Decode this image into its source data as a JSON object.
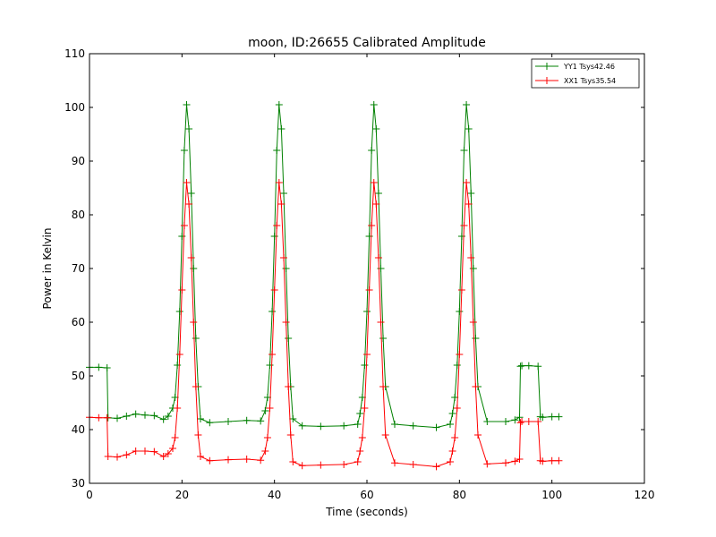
{
  "chart_data": {
    "type": "line",
    "title": "moon, ID:26655 Calibrated Amplitude",
    "xlabel": "Time (seconds)",
    "ylabel": "Power in Kelvin",
    "xlim": [
      0,
      120
    ],
    "ylim": [
      30,
      110
    ],
    "xticks": [
      0,
      20,
      40,
      60,
      80,
      100,
      120
    ],
    "yticks": [
      30,
      40,
      50,
      60,
      70,
      80,
      90,
      100,
      110
    ],
    "grid": false,
    "legend": "top-right",
    "marker": "+",
    "series": [
      {
        "name": "YY1 Tsys42.46",
        "color": "#008000",
        "x": [
          0,
          2,
          3.8,
          4,
          6,
          8,
          10,
          12,
          14,
          16,
          17,
          18,
          18.5,
          19,
          19.5,
          20,
          20.5,
          21,
          21.5,
          22,
          22.5,
          23,
          23.5,
          24,
          26,
          30,
          34,
          37,
          38,
          38.5,
          39,
          39.5,
          40,
          40.5,
          41,
          41.5,
          42,
          42.5,
          43,
          43.5,
          44,
          46,
          50,
          55,
          58,
          58.5,
          59,
          59.5,
          60,
          60.5,
          61,
          61.5,
          62,
          62.5,
          63,
          63.5,
          64,
          66,
          70,
          75,
          78,
          78.5,
          79,
          79.5,
          80,
          80.5,
          81,
          81.5,
          82,
          82.5,
          83,
          83.5,
          84,
          86,
          90,
          92,
          93,
          93.2,
          93.5,
          95,
          97,
          97.5,
          98,
          100,
          101.5
        ],
        "y": [
          51.6,
          51.6,
          51.5,
          42.2,
          42.1,
          42.5,
          42.9,
          42.7,
          42.6,
          41.9,
          42.5,
          44,
          46,
          52,
          62,
          76,
          92,
          100.5,
          96,
          84,
          70,
          57,
          48,
          42,
          41.3,
          41.5,
          41.7,
          41.6,
          43.5,
          46,
          52,
          62,
          76,
          92,
          100.5,
          96,
          84,
          70,
          57,
          48,
          42,
          40.7,
          40.6,
          40.7,
          41,
          43,
          46,
          52,
          62,
          76,
          92,
          100.5,
          96,
          84,
          70,
          57,
          48,
          41,
          40.7,
          40.4,
          41,
          43,
          46,
          52,
          62,
          76,
          92,
          100.5,
          96,
          84,
          70,
          57,
          48,
          41.5,
          41.5,
          41.8,
          42.3,
          51.8,
          51.9,
          51.9,
          51.8,
          42.4,
          42.3,
          42.4,
          42.4
        ]
      },
      {
        "name": "XX1 Tsys35.54",
        "color": "#ff0000",
        "x": [
          0,
          2,
          3.8,
          4,
          6,
          8,
          10,
          12,
          14,
          16,
          17,
          18,
          18.5,
          19,
          19.5,
          20,
          20.5,
          21,
          21.5,
          22,
          22.5,
          23,
          23.5,
          24,
          26,
          30,
          34,
          37,
          38,
          38.5,
          39,
          39.5,
          40,
          40.5,
          41,
          41.5,
          42,
          42.5,
          43,
          43.5,
          44,
          46,
          50,
          55,
          58,
          58.5,
          59,
          59.5,
          60,
          60.5,
          61,
          61.5,
          62,
          62.5,
          63,
          63.5,
          64,
          66,
          70,
          75,
          78,
          78.5,
          79,
          79.5,
          80,
          80.5,
          81,
          81.5,
          82,
          82.5,
          83,
          83.5,
          84,
          86,
          90,
          92,
          93,
          93.2,
          93.5,
          95,
          97,
          97.5,
          98,
          100,
          101.5
        ],
        "y": [
          42.3,
          42.2,
          42.2,
          35,
          34.9,
          35.3,
          36,
          36,
          35.9,
          35,
          35.5,
          36.5,
          38.5,
          44,
          54,
          66,
          78,
          86,
          82,
          72,
          60,
          48,
          39,
          35,
          34.2,
          34.4,
          34.5,
          34.3,
          36,
          38.5,
          44,
          54,
          66,
          78,
          86,
          82,
          72,
          60,
          48,
          39,
          34,
          33.3,
          33.4,
          33.5,
          34,
          36,
          38.5,
          44,
          54,
          66,
          78,
          86,
          82,
          72,
          60,
          48,
          39,
          33.8,
          33.5,
          33.1,
          34,
          36,
          38.5,
          44,
          54,
          66,
          78,
          86,
          82,
          72,
          60,
          48,
          39,
          33.6,
          33.8,
          34.1,
          34.5,
          41.3,
          41.5,
          41.5,
          41.5,
          34.2,
          34.1,
          34.2,
          34.2
        ]
      }
    ]
  }
}
